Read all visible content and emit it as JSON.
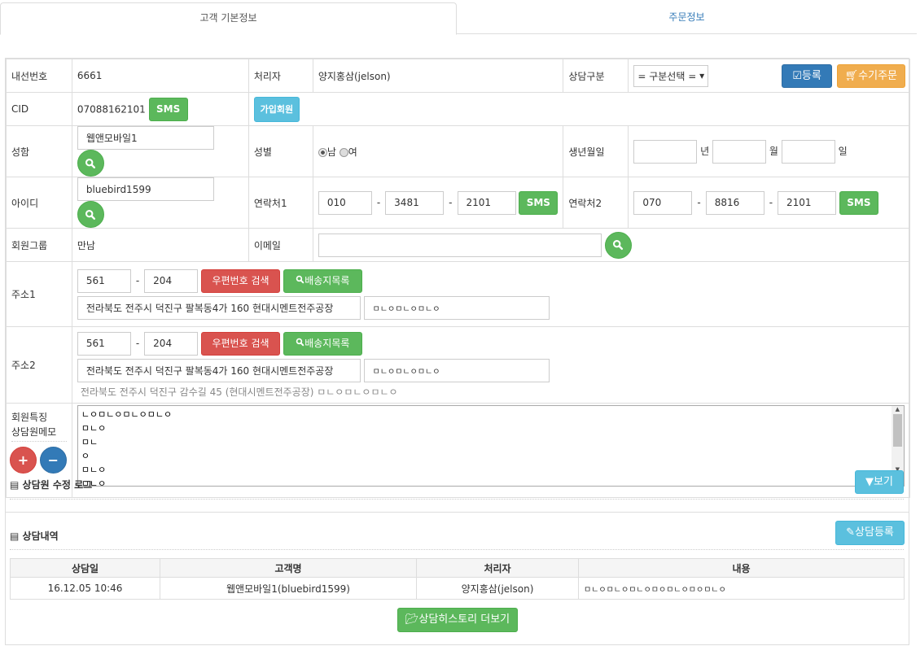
{
  "tabs": [
    "고객 기본정보",
    "주문정보"
  ],
  "form": {
    "ext_label": "내선번호",
    "ext_value": "6661",
    "handler_label": "처리자",
    "handler_value": "양지홍삼(jelson)",
    "type_label": "상담구분",
    "type_select": "= 구분선택 =",
    "register_btn": "등록",
    "manual_order_btn": "수기주문",
    "cid_label": "CID",
    "cid_value": "07088162101",
    "sms": "SMS",
    "member_btn": "가입회원",
    "name_label": "성함",
    "name_value": "웹앤모바일1",
    "gender_label": "성별",
    "gender_male": "남",
    "gender_female": "여",
    "gender_selected": "남",
    "birth_label": "생년월일",
    "year": "년",
    "month": "월",
    "day": "일",
    "id_label": "아이디",
    "id_value": "bluebird1599",
    "phone1_label": "연락처1",
    "phone1": [
      "010",
      "3481",
      "2101"
    ],
    "phone2_label": "연락처2",
    "phone2": [
      "070",
      "8816",
      "2101"
    ],
    "group_label": "회원그룹",
    "group_value": "만남",
    "email_label": "이메일",
    "email_value": "",
    "addr1_label": "주소1",
    "addr2_label": "주소2",
    "zip": [
      "561",
      "204"
    ],
    "zip_search": "우편번호 검색",
    "ship_list": "배송지목록",
    "addr1_main": "전라북도 전주시 덕진구 팔복동4가 160 현대시멘트전주공장",
    "addr1_detail": "ㅁㄴㅇㅁㄴㅇㅁㄴㅇ",
    "addr2_main": "전라북도 전주시 덕진구 팔복동4가 160 현대시멘트전주공장",
    "addr2_detail": "ㅁㄴㅇㅁㄴㅇㅁㄴㅇ",
    "addr2_road": "전라북도 전주시 덕진구 감수길 45 (현대시멘트전주공장) ㅁㄴㅇㅁㄴㅇㅁㄴㅇ",
    "memo_label1": "회원특징",
    "memo_label2": "상담원메모",
    "memo_value": "ㄴㅇㅁㄴㅇㅁㄴㅇㅁㄴㅇ\nㅁㄴㅇ\nㅁㄴ\nㅇ\nㅁㄴㅇ\nㅁㄴㅇ"
  },
  "log": {
    "title": "상담원 수정 로그",
    "view_btn": "보기"
  },
  "history": {
    "title": "상담내역",
    "register_btn": "상담등록",
    "columns": [
      "상담일",
      "고객명",
      "처리자",
      "내용"
    ],
    "rows": [
      [
        "16.12.05 10:46",
        "웹앤모바일1(bluebird1599)",
        "양지홍삼(jelson)",
        "ㅁㄴㅇㅁㄴㅇㅁㄴㅇㅁㅇㅁㄴㅇㅁㅇㅁㄴㅇ"
      ]
    ],
    "more_btn": "상담히스토리 더보기"
  },
  "colors": {
    "green": "#5cb85c",
    "blue": "#337ab7",
    "orange": "#f0ad4e",
    "red": "#d9534f",
    "info": "#5bc0de"
  }
}
